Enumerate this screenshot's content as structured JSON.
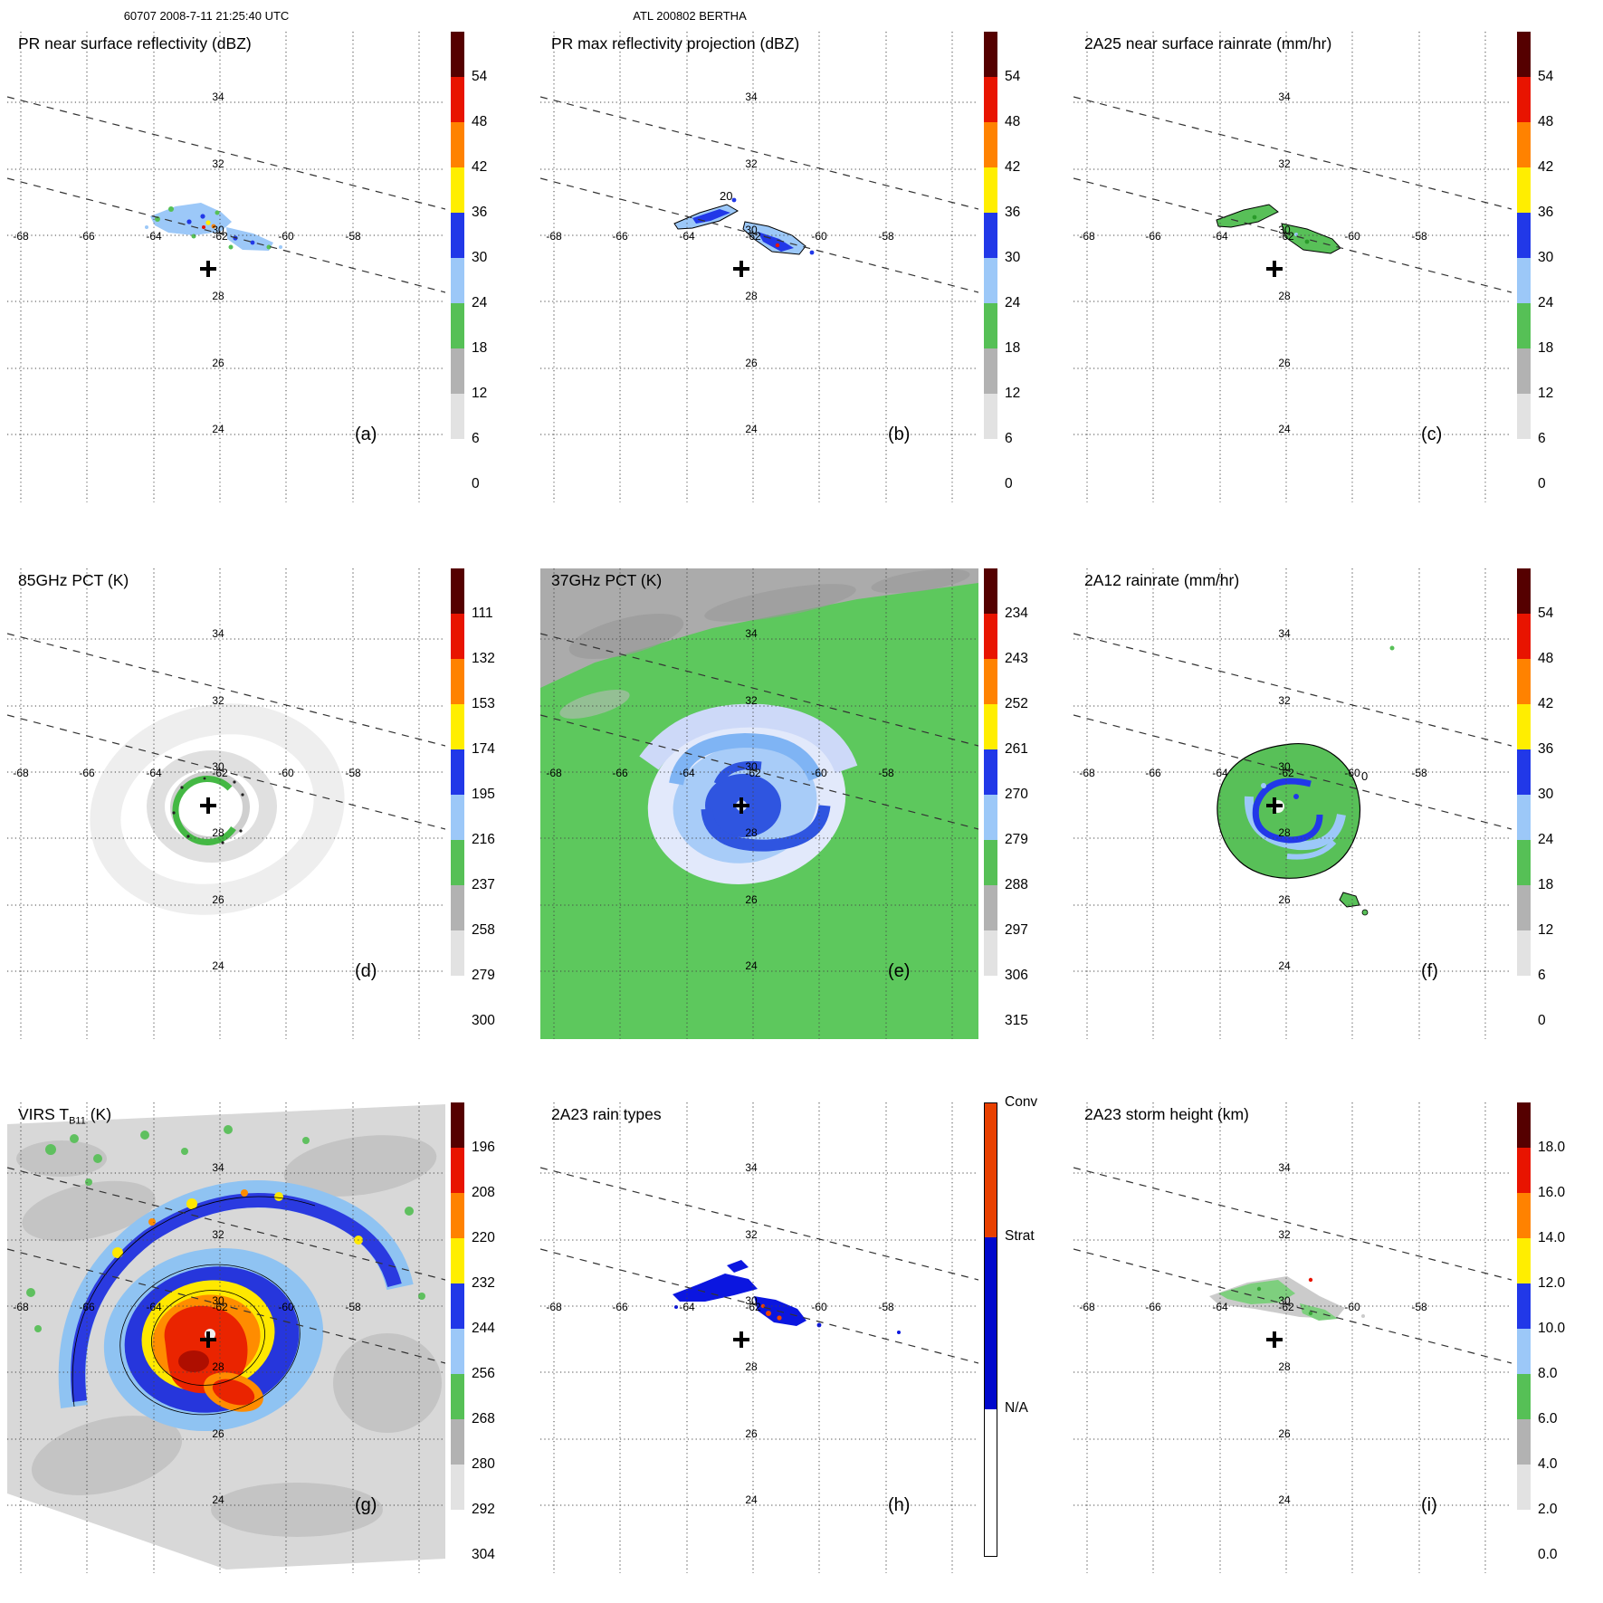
{
  "header": {
    "left": "60707 2008-7-11 21:25:40 UTC",
    "center": "ATL 200802 BERTHA"
  },
  "axis": {
    "lat_labels": [
      "34",
      "32",
      "30",
      "28",
      "26",
      "24"
    ],
    "lon_labels": [
      "-68",
      "-66",
      "-64",
      "-62",
      "-60",
      "-58"
    ]
  },
  "scale_colors": [
    "#550000",
    "#e81400",
    "#ff8200",
    "#ffee00",
    "#2138e8",
    "#9cc8f8",
    "#56c056",
    "#b2b2b2",
    "#e2e2e2",
    "#ffffff"
  ],
  "panels": [
    {
      "id": "a",
      "title": "PR near surface reflectivity (dBZ)",
      "letter": "(a)",
      "colorbar": {
        "ticks": [
          "54",
          "48",
          "42",
          "36",
          "30",
          "24",
          "18",
          "12",
          "6",
          "0"
        ]
      }
    },
    {
      "id": "b",
      "title": "PR max reflectivity projection (dBZ)",
      "letter": "(b)",
      "contour_label": "20",
      "colorbar": {
        "ticks": [
          "54",
          "48",
          "42",
          "36",
          "30",
          "24",
          "18",
          "12",
          "6",
          "0"
        ]
      }
    },
    {
      "id": "c",
      "title": "2A25 near surface rainrate (mm/hr)",
      "letter": "(c)",
      "colorbar": {
        "ticks": [
          "54",
          "48",
          "42",
          "36",
          "30",
          "24",
          "18",
          "12",
          "6",
          "0"
        ]
      }
    },
    {
      "id": "d",
      "title": "85GHz PCT (K)",
      "letter": "(d)",
      "colorbar": {
        "ticks": [
          "111",
          "132",
          "153",
          "174",
          "195",
          "216",
          "237",
          "258",
          "279",
          "300"
        ]
      }
    },
    {
      "id": "e",
      "title": "37GHz PCT (K)",
      "letter": "(e)",
      "colorbar": {
        "ticks": [
          "234",
          "243",
          "252",
          "261",
          "270",
          "279",
          "288",
          "297",
          "306",
          "315"
        ]
      }
    },
    {
      "id": "f",
      "title": "2A12 rainrate (mm/hr)",
      "letter": "(f)",
      "contour_label": "0",
      "colorbar": {
        "ticks": [
          "54",
          "48",
          "42",
          "36",
          "30",
          "24",
          "18",
          "12",
          "6",
          "0"
        ]
      }
    },
    {
      "id": "g",
      "title_prefix": "VIRS T",
      "title_sub": "B11",
      "title_suffix": " (K)",
      "letter": "(g)",
      "colorbar": {
        "ticks": [
          "196",
          "208",
          "220",
          "232",
          "244",
          "256",
          "268",
          "280",
          "292",
          "304"
        ]
      }
    },
    {
      "id": "h",
      "title": "2A23 rain types",
      "letter": "(h)",
      "colorbar": {
        "segments": [
          {
            "label": "Conv",
            "color": "#e84000",
            "frac": 0.295
          },
          {
            "label": "Strat",
            "color": "#0008cc",
            "frac": 0.38
          },
          {
            "label": "N/A",
            "color": "#ffffff",
            "frac": 0.325
          }
        ]
      }
    },
    {
      "id": "i",
      "title": "2A23 storm height (km)",
      "letter": "(i)",
      "colorbar": {
        "ticks": [
          "18.0",
          "16.0",
          "14.0",
          "12.0",
          "10.0",
          "8.0",
          "6.0",
          "4.0",
          "2.0",
          "0.0"
        ]
      }
    }
  ],
  "chart_data": {
    "type": "heatmap",
    "title": "TRMM overpass of Hurricane Bertha (ATL 200802), orbit 60707, 2008-07-11 21:25:40 UTC",
    "layout": "3x3 grid of geographic panels, each with its own vertical colorbar on the right",
    "map_extent": {
      "lon_range": [
        -68.5,
        -55.5
      ],
      "lat_range": [
        22.5,
        36.2
      ]
    },
    "lon_ticks": [
      -68,
      -66,
      -64,
      -62,
      -60,
      -58
    ],
    "lat_ticks": [
      34,
      32,
      30,
      28,
      26,
      24
    ],
    "grid": "dotted graticule every 2 degrees; two dashed diagonal lines mark the PR swath edges",
    "storm_center_marker": {
      "lon": -62.4,
      "lat": 29.0
    },
    "panels": [
      {
        "letter": "(a)",
        "title": "PR near surface reflectivity (dBZ)",
        "colorbar_ticks": [
          0,
          6,
          12,
          18,
          24,
          30,
          36,
          42,
          48,
          54
        ],
        "features": "Narrow rainband near 30.3N between 64.5W and 60.5W inside the PR swath; mostly 18-30 dBZ with isolated 36-48 dBZ cells"
      },
      {
        "letter": "(b)",
        "title": "PR max reflectivity projection (dBZ)",
        "colorbar_ticks": [
          0,
          6,
          12,
          18,
          24,
          30,
          36,
          42,
          48,
          54
        ],
        "contour_label": "20",
        "features": "Same rainband shown as column-max reflectivity with a 20 dBZ contour outline; widespread 24-36 dBZ"
      },
      {
        "letter": "(c)",
        "title": "2A25 near surface rainrate (mm/hr)",
        "colorbar_ticks": [
          0,
          6,
          12,
          18,
          24,
          30,
          36,
          42,
          48,
          54
        ],
        "features": "Rainband rain rates mostly below 6 mm/hr (green) with black outlined patches"
      },
      {
        "letter": "(d)",
        "title": "85GHz PCT (K)",
        "colorbar_ticks": [
          300,
          279,
          258,
          237,
          216,
          195,
          174,
          153,
          132,
          111
        ],
        "features": "Mostly warm PCT above 280 K (near white); partial green 237 K ice-scattering ring around the low-level center"
      },
      {
        "letter": "(e)",
        "title": "37GHz PCT (K)",
        "colorbar_ticks": [
          315,
          306,
          297,
          288,
          279,
          270,
          261,
          252,
          243,
          234
        ],
        "features": "Broad green ~288 K environment, gray >297 K band to the northwest, and a 261-279 K blue spiral ring around the center"
      },
      {
        "letter": "(f)",
        "title": "2A12 rainrate (mm/hr)",
        "colorbar_ticks": [
          0,
          6,
          12,
          18,
          24,
          30,
          36,
          42,
          48,
          54
        ],
        "contour_label": "0",
        "features": "Nearly circular TMI rain shield about 1.5 degrees wide centered on the storm, mostly under 6 mm/hr with 6-24 mm/hr spiral bands"
      },
      {
        "letter": "(g)",
        "title": "VIRS TB11 (K)",
        "colorbar_ticks": [
          304,
          292,
          280,
          268,
          256,
          244,
          232,
          220,
          208,
          196
        ],
        "features": "Cold central dense overcast with 208-220 K orange-red core, 232-256 K yellow-blue banding, and a warmer gray environment swath"
      },
      {
        "letter": "(h)",
        "title": "2A23 rain types",
        "colorbar_ticks": [
          "Conv",
          "Strat",
          "N/A"
        ],
        "features": "Rainband classified mostly stratiform (blue) with a few convective (orange) pixels near 61.5W"
      },
      {
        "letter": "(i)",
        "title": "2A23 storm height (km)",
        "colorbar_ticks": [
          0,
          2,
          4,
          6,
          8,
          10,
          12,
          14,
          16,
          18
        ],
        "features": "Rainband echo tops mostly 4-6 km (green) with shallow 2-4 km gray fringes"
      }
    ]
  }
}
